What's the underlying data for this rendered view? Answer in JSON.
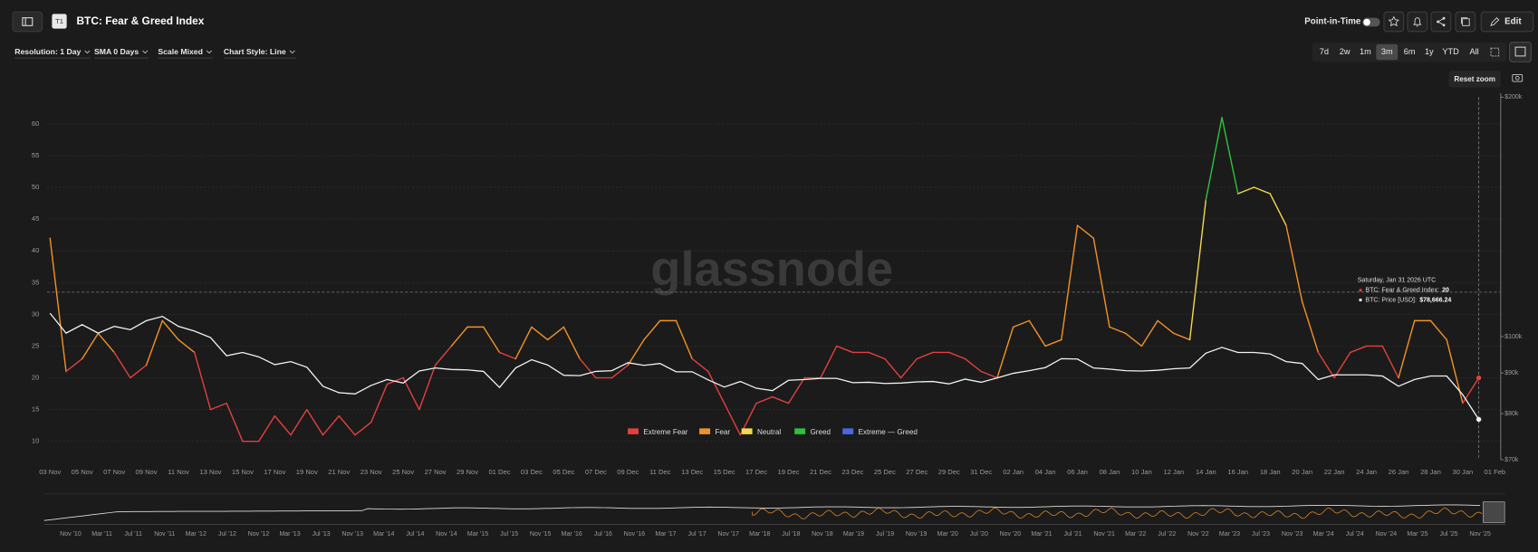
{
  "header": {
    "icon": "T1",
    "title": "BTC: Fear & Greed Index",
    "point_in_time": "Point-in-Time",
    "edit": "Edit"
  },
  "toolbar": {
    "dropdowns": [
      "Resolution: 1 Day",
      "SMA 0 Days",
      "Scale Mixed",
      "Chart Style: Line"
    ],
    "ranges": [
      "7d",
      "2w",
      "1m",
      "3m",
      "6m",
      "1y",
      "YTD",
      "All"
    ],
    "active_range": "3m",
    "reset_zoom": "Reset zoom"
  },
  "chart_data": {
    "type": "line",
    "watermark": "glassnode",
    "categories": [
      "03 Nov",
      null,
      "05 Nov",
      null,
      "07 Nov",
      null,
      "09 Nov",
      null,
      "11 Nov",
      null,
      "13 Nov",
      null,
      "15 Nov",
      null,
      "17 Nov",
      null,
      "19 Nov",
      null,
      "21 Nov",
      null,
      "23 Nov",
      null,
      "25 Nov",
      null,
      "27 Nov",
      null,
      "29 Nov",
      null,
      "01 Dec",
      null,
      "03 Dec",
      null,
      "05 Dec",
      null,
      "07 Dec",
      null,
      "09 Dec",
      null,
      "11 Dec",
      null,
      "13 Dec",
      null,
      "15 Dec",
      null,
      "17 Dec",
      null,
      "19 Dec",
      null,
      "21 Dec",
      null,
      "23 Dec",
      null,
      "25 Dec",
      null,
      "27 Dec",
      null,
      "29 Dec",
      null,
      "31 Dec",
      null,
      "02 Jan",
      null,
      "04 Jan",
      null,
      "06 Jan",
      null,
      "08 Jan",
      null,
      "10 Jan",
      null,
      "12 Jan",
      null,
      "14 Jan",
      null,
      "16 Jan",
      null,
      "18 Jan",
      null,
      "20 Jan",
      null,
      "22 Jan",
      null,
      "24 Jan",
      null,
      "26 Jan",
      null,
      "28 Jan",
      null,
      "30 Jan",
      null,
      "01 Feb"
    ],
    "series": [
      {
        "values": [
          42,
          21,
          23,
          27,
          24,
          20,
          22,
          29,
          26,
          24,
          15,
          16,
          10,
          10,
          14,
          11,
          15,
          11,
          14,
          11,
          13,
          19,
          20,
          15,
          22,
          25,
          28,
          28,
          24,
          23,
          28,
          26,
          28,
          23,
          20,
          20,
          22,
          26,
          29,
          29,
          23,
          21,
          16,
          11,
          16,
          17,
          16,
          20,
          20,
          25,
          24,
          24,
          23,
          20,
          23,
          24,
          24,
          23,
          21,
          20,
          28,
          29,
          25,
          26,
          44,
          42,
          28,
          27,
          25,
          29,
          27,
          26,
          48,
          61,
          49,
          50,
          49,
          44,
          32,
          24,
          20,
          24,
          25,
          25,
          20,
          29,
          29,
          26,
          16,
          20,
          null
        ]
      },
      {
        "color": "#f2f2f2",
        "axis": "y2",
        "values": [
          107000,
          101000,
          103500,
          101000,
          103000,
          102000,
          104700,
          106000,
          103000,
          101600,
          99700,
          94600,
          95500,
          94300,
          92200,
          93000,
          91500,
          86600,
          85000,
          84700,
          86800,
          88300,
          87400,
          90500,
          91300,
          90900,
          90800,
          90400,
          86300,
          91300,
          93500,
          92100,
          89400,
          89300,
          90400,
          90600,
          92700,
          92000,
          92500,
          90300,
          90300,
          88200,
          86400,
          87800,
          86100,
          85500,
          88100,
          88300,
          88600,
          88600,
          87500,
          87600,
          87300,
          87400,
          87700,
          87800,
          87200,
          88400,
          87600,
          88700,
          89900,
          90600,
          91400,
          93800,
          93700,
          91300,
          91000,
          90600,
          90500,
          90700,
          91100,
          91300,
          95300,
          96900,
          95500,
          95500,
          95100,
          93000,
          92500,
          88300,
          89500,
          89500,
          89500,
          89200,
          86600,
          88300,
          89200,
          89200,
          84500,
          78666.24,
          null
        ]
      }
    ],
    "legend": [
      {
        "name": "Extreme Fear",
        "color": "#e2403f"
      },
      {
        "name": "Fear",
        "color": "#f39128"
      },
      {
        "name": "Neutral",
        "color": "#f3d850"
      },
      {
        "name": "Greed",
        "color": "#2fc23c"
      },
      {
        "name": "Extreme — Greed",
        "color": "#4a68e8"
      }
    ],
    "ylim": [
      7.1,
      64.2
    ],
    "yticks": [
      10,
      15,
      20,
      25,
      30,
      35,
      40,
      45,
      50,
      55,
      60
    ],
    "y2lim": [
      70000,
      200000
    ],
    "y2scale": "log",
    "y2ticks": [
      {
        "value": 70000,
        "label": "$70k"
      },
      {
        "value": 80000,
        "label": "$80k"
      },
      {
        "value": 90000,
        "label": "$90k"
      },
      {
        "value": 100000,
        "label": "$100k"
      },
      {
        "value": 200000,
        "label": "$200k"
      }
    ],
    "grid": true,
    "tooltip": {
      "date": "Saturday, Jan 31 2026 UTC",
      "items": [
        {
          "label": "BTC: Fear & Greed Index:",
          "value": "20"
        },
        {
          "label": "BTC: Price [USD]:",
          "value": "$78,666.24"
        }
      ]
    }
  },
  "navigator": {
    "labels": [
      "Nov '10",
      "Mar '11",
      "Jul '11",
      "Nov '11",
      "Mar '12",
      "Jul '12",
      "Nov '12",
      "Mar '13",
      "Jul '13",
      "Nov '13",
      "Mar '14",
      "Jul '14",
      "Nov '14",
      "Mar '15",
      "Jul '15",
      "Nov '15",
      "Mar '16",
      "Jul '16",
      "Nov '16",
      "Mar '17",
      "Jul '17",
      "Nov '17",
      "Mar '18",
      "Jul '18",
      "Nov '18",
      "Mar '19",
      "Jul '19",
      "Nov '19",
      "Mar '20",
      "Jul '20",
      "Nov '20",
      "Mar '21",
      "Jul '21",
      "Nov '21",
      "Mar '22",
      "Jul '22",
      "Nov '22",
      "Mar '23",
      "Jul '23",
      "Nov '23",
      "Mar '24",
      "Jul '24",
      "Nov '24",
      "Mar '25",
      "Jul '25",
      "Nov '25"
    ]
  }
}
